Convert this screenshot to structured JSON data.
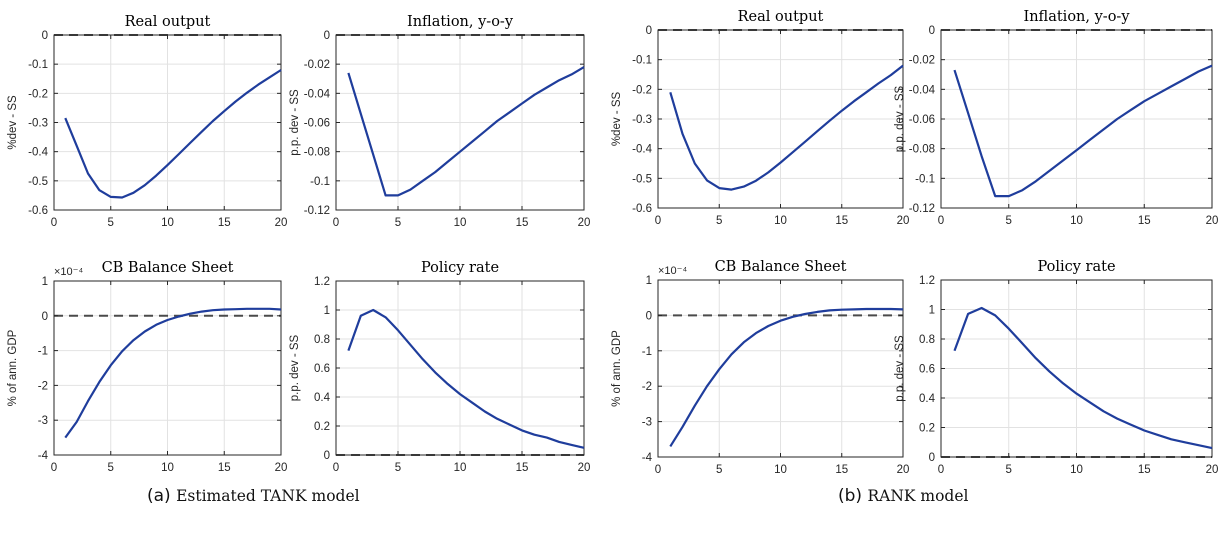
{
  "colors": {
    "line": "#1f3d9c",
    "zero": "#4a4a4a",
    "grid": "#e2e2e2",
    "axis": "#262626"
  },
  "panels": [
    {
      "caption": {
        "label": "(a)",
        "text": "Estimated TANK model"
      },
      "charts": [
        {
          "id": "tank-output",
          "type": "line",
          "title": "Real output",
          "xlabel": "",
          "ylabel": "%dev - SS",
          "xlim": [
            0,
            20
          ],
          "ylim": [
            -0.6,
            0
          ],
          "xticks": [
            "0",
            "5",
            "10",
            "15",
            "20"
          ],
          "xtick_values": [
            0,
            5,
            10,
            15,
            20
          ],
          "yticks": [
            "0",
            "-0.1",
            "-0.2",
            "-0.3",
            "-0.4",
            "-0.5",
            "-0.6"
          ],
          "ytick_values": [
            0,
            -0.1,
            -0.2,
            -0.3,
            -0.4,
            -0.5,
            -0.6
          ],
          "grid": true,
          "zero_line": 0,
          "x": [
            1,
            2,
            3,
            4,
            5,
            6,
            7,
            8,
            9,
            10,
            11,
            12,
            13,
            14,
            15,
            16,
            17,
            18,
            19,
            20
          ],
          "y": [
            -0.285,
            -0.38,
            -0.475,
            -0.532,
            -0.555,
            -0.557,
            -0.541,
            -0.515,
            -0.482,
            -0.446,
            -0.408,
            -0.37,
            -0.332,
            -0.295,
            -0.261,
            -0.228,
            -0.198,
            -0.17,
            -0.145,
            -0.12
          ]
        },
        {
          "id": "tank-inflation",
          "type": "line",
          "title": "Inflation, y-o-y",
          "xlabel": "",
          "ylabel": "p.p. dev - SS",
          "xlim": [
            0,
            20
          ],
          "ylim": [
            -0.12,
            0
          ],
          "xticks": [
            "0",
            "5",
            "10",
            "15",
            "20"
          ],
          "xtick_values": [
            0,
            5,
            10,
            15,
            20
          ],
          "yticks": [
            "0",
            "-0.02",
            "-0.04",
            "-0.06",
            "-0.08",
            "-0.1",
            "-0.12"
          ],
          "ytick_values": [
            0,
            -0.02,
            -0.04,
            -0.06,
            -0.08,
            -0.1,
            -0.12
          ],
          "grid": true,
          "zero_line": 0,
          "x": [
            1,
            2,
            3,
            4,
            5,
            6,
            7,
            8,
            9,
            10,
            11,
            12,
            13,
            14,
            15,
            16,
            17,
            18,
            19,
            20
          ],
          "y": [
            -0.026,
            -0.054,
            -0.082,
            -0.11,
            -0.11,
            -0.106,
            -0.1,
            -0.094,
            -0.087,
            -0.08,
            -0.073,
            -0.066,
            -0.059,
            -0.053,
            -0.047,
            -0.041,
            -0.036,
            -0.031,
            -0.027,
            -0.022
          ]
        },
        {
          "id": "tank-balance",
          "type": "line",
          "title": "CB Balance Sheet",
          "xlabel": "",
          "ylabel": "% of ann. GDP",
          "xlim": [
            0,
            20
          ],
          "ylim": [
            -4,
            1
          ],
          "exponent": "×10⁻⁴",
          "xticks": [
            "0",
            "5",
            "10",
            "15",
            "20"
          ],
          "xtick_values": [
            0,
            5,
            10,
            15,
            20
          ],
          "yticks": [
            "1",
            "0",
            "-1",
            "-2",
            "-3",
            "-4"
          ],
          "ytick_values": [
            1,
            0,
            -1,
            -2,
            -3,
            -4
          ],
          "grid": true,
          "zero_line": 0,
          "x": [
            1,
            2,
            3,
            4,
            5,
            6,
            7,
            8,
            9,
            10,
            11,
            12,
            13,
            14,
            15,
            16,
            17,
            18,
            19,
            20
          ],
          "y": [
            -3.5,
            -3.05,
            -2.45,
            -1.9,
            -1.42,
            -1.02,
            -0.7,
            -0.45,
            -0.26,
            -0.12,
            -0.02,
            0.06,
            0.12,
            0.16,
            0.18,
            0.19,
            0.2,
            0.2,
            0.2,
            0.18
          ]
        },
        {
          "id": "tank-policy",
          "type": "line",
          "title": "Policy rate",
          "xlabel": "",
          "ylabel": "p.p. dev - SS",
          "xlim": [
            0,
            20
          ],
          "ylim": [
            0,
            1.2
          ],
          "xticks": [
            "0",
            "5",
            "10",
            "15",
            "20"
          ],
          "xtick_values": [
            0,
            5,
            10,
            15,
            20
          ],
          "yticks": [
            "1.2",
            "1",
            "0.8",
            "0.6",
            "0.4",
            "0.2",
            "0"
          ],
          "ytick_values": [
            1.2,
            1,
            0.8,
            0.6,
            0.4,
            0.2,
            0
          ],
          "grid": true,
          "zero_line": 0,
          "x": [
            1,
            2,
            3,
            4,
            5,
            6,
            7,
            8,
            9,
            10,
            11,
            12,
            13,
            14,
            15,
            16,
            17,
            18,
            19,
            20
          ],
          "y": [
            0.72,
            0.96,
            1.0,
            0.95,
            0.86,
            0.76,
            0.66,
            0.57,
            0.49,
            0.42,
            0.36,
            0.3,
            0.25,
            0.21,
            0.17,
            0.14,
            0.12,
            0.09,
            0.07,
            0.05
          ]
        }
      ]
    },
    {
      "caption": {
        "label": "(b)",
        "text": "RANK model"
      },
      "charts": [
        {
          "id": "rank-output",
          "type": "line",
          "title": "Real output",
          "xlabel": "",
          "ylabel": "%dev - SS",
          "xlim": [
            0,
            20
          ],
          "ylim": [
            -0.6,
            0
          ],
          "xticks": [
            "0",
            "5",
            "10",
            "15",
            "20"
          ],
          "xtick_values": [
            0,
            5,
            10,
            15,
            20
          ],
          "yticks": [
            "0",
            "-0.1",
            "-0.2",
            "-0.3",
            "-0.4",
            "-0.5",
            "-0.6"
          ],
          "ytick_values": [
            0,
            -0.1,
            -0.2,
            -0.3,
            -0.4,
            -0.5,
            -0.6
          ],
          "grid": true,
          "zero_line": 0,
          "x": [
            1,
            2,
            3,
            4,
            5,
            6,
            7,
            8,
            9,
            10,
            11,
            12,
            13,
            14,
            15,
            16,
            17,
            18,
            19,
            20
          ],
          "y": [
            -0.21,
            -0.35,
            -0.45,
            -0.507,
            -0.533,
            -0.538,
            -0.528,
            -0.508,
            -0.48,
            -0.447,
            -0.412,
            -0.377,
            -0.341,
            -0.306,
            -0.272,
            -0.24,
            -0.21,
            -0.18,
            -0.152,
            -0.12
          ]
        },
        {
          "id": "rank-inflation",
          "type": "line",
          "title": "Inflation, y-o-y",
          "xlabel": "",
          "ylabel": "p.p. dev - SS",
          "xlim": [
            0,
            20
          ],
          "ylim": [
            -0.12,
            0
          ],
          "xticks": [
            "0",
            "5",
            "10",
            "15",
            "20"
          ],
          "xtick_values": [
            0,
            5,
            10,
            15,
            20
          ],
          "yticks": [
            "0",
            "-0.02",
            "-0.04",
            "-0.06",
            "-0.08",
            "-0.1",
            "-0.12"
          ],
          "ytick_values": [
            0,
            -0.02,
            -0.04,
            -0.06,
            -0.08,
            -0.1,
            -0.12
          ],
          "grid": true,
          "zero_line": 0,
          "x": [
            1,
            2,
            3,
            4,
            5,
            6,
            7,
            8,
            9,
            10,
            11,
            12,
            13,
            14,
            15,
            16,
            17,
            18,
            19,
            20
          ],
          "y": [
            -0.027,
            -0.056,
            -0.085,
            -0.112,
            -0.112,
            -0.108,
            -0.102,
            -0.095,
            -0.088,
            -0.081,
            -0.074,
            -0.067,
            -0.06,
            -0.054,
            -0.048,
            -0.043,
            -0.038,
            -0.033,
            -0.028,
            -0.024
          ]
        },
        {
          "id": "rank-balance",
          "type": "line",
          "title": "CB Balance Sheet",
          "xlabel": "",
          "ylabel": "% of ann. GDP",
          "xlim": [
            0,
            20
          ],
          "ylim": [
            -4,
            1
          ],
          "exponent": "×10⁻⁴",
          "xticks": [
            "0",
            "5",
            "10",
            "15",
            "20"
          ],
          "xtick_values": [
            0,
            5,
            10,
            15,
            20
          ],
          "yticks": [
            "1",
            "0",
            "-1",
            "-2",
            "-3",
            "-4"
          ],
          "ytick_values": [
            1,
            0,
            -1,
            -2,
            -3,
            -4
          ],
          "grid": true,
          "zero_line": 0,
          "x": [
            1,
            2,
            3,
            4,
            5,
            6,
            7,
            8,
            9,
            10,
            11,
            12,
            13,
            14,
            15,
            16,
            17,
            18,
            19,
            20
          ],
          "y": [
            -3.7,
            -3.15,
            -2.55,
            -2.0,
            -1.52,
            -1.1,
            -0.76,
            -0.5,
            -0.3,
            -0.15,
            -0.04,
            0.04,
            0.1,
            0.14,
            0.16,
            0.17,
            0.18,
            0.18,
            0.18,
            0.17
          ]
        },
        {
          "id": "rank-policy",
          "type": "line",
          "title": "Policy rate",
          "xlabel": "",
          "ylabel": "p.p. dev - SS",
          "xlim": [
            0,
            20
          ],
          "ylim": [
            0,
            1.2
          ],
          "xticks": [
            "0",
            "5",
            "10",
            "15",
            "20"
          ],
          "xtick_values": [
            0,
            5,
            10,
            15,
            20
          ],
          "yticks": [
            "1.2",
            "1",
            "0.8",
            "0.6",
            "0.4",
            "0.2",
            "0"
          ],
          "ytick_values": [
            1.2,
            1,
            0.8,
            0.6,
            0.4,
            0.2,
            0
          ],
          "grid": true,
          "zero_line": 0,
          "x": [
            1,
            2,
            3,
            4,
            5,
            6,
            7,
            8,
            9,
            10,
            11,
            12,
            13,
            14,
            15,
            16,
            17,
            18,
            19,
            20
          ],
          "y": [
            0.72,
            0.97,
            1.01,
            0.96,
            0.87,
            0.77,
            0.67,
            0.58,
            0.5,
            0.43,
            0.37,
            0.31,
            0.26,
            0.22,
            0.18,
            0.15,
            0.12,
            0.1,
            0.08,
            0.06
          ]
        }
      ]
    }
  ],
  "chart_data": [
    {
      "type": "line",
      "title": "Real output",
      "ylabel": "%dev - SS",
      "xlim": [
        0,
        20
      ],
      "ylim": [
        -0.6,
        0
      ],
      "x": [
        1,
        2,
        3,
        4,
        5,
        6,
        7,
        8,
        9,
        10,
        11,
        12,
        13,
        14,
        15,
        16,
        17,
        18,
        19,
        20
      ],
      "y": [
        -0.285,
        -0.38,
        -0.475,
        -0.532,
        -0.555,
        -0.557,
        -0.541,
        -0.515,
        -0.482,
        -0.446,
        -0.408,
        -0.37,
        -0.332,
        -0.295,
        -0.261,
        -0.228,
        -0.198,
        -0.17,
        -0.145,
        -0.12
      ]
    },
    {
      "type": "line",
      "title": "Inflation, y-o-y",
      "ylabel": "p.p. dev - SS",
      "xlim": [
        0,
        20
      ],
      "ylim": [
        -0.12,
        0
      ],
      "x": [
        1,
        2,
        3,
        4,
        5,
        6,
        7,
        8,
        9,
        10,
        11,
        12,
        13,
        14,
        15,
        16,
        17,
        18,
        19,
        20
      ],
      "y": [
        -0.026,
        -0.054,
        -0.082,
        -0.11,
        -0.11,
        -0.106,
        -0.1,
        -0.094,
        -0.087,
        -0.08,
        -0.073,
        -0.066,
        -0.059,
        -0.053,
        -0.047,
        -0.041,
        -0.036,
        -0.031,
        -0.027,
        -0.022
      ]
    },
    {
      "type": "line",
      "title": "CB Balance Sheet",
      "ylabel": "% of ann. GDP",
      "xlim": [
        0,
        20
      ],
      "ylim": [
        -4,
        1
      ],
      "scale": "×10^-4",
      "x": [
        1,
        2,
        3,
        4,
        5,
        6,
        7,
        8,
        9,
        10,
        11,
        12,
        13,
        14,
        15,
        16,
        17,
        18,
        19,
        20
      ],
      "y": [
        -3.5,
        -3.05,
        -2.45,
        -1.9,
        -1.42,
        -1.02,
        -0.7,
        -0.45,
        -0.26,
        -0.12,
        -0.02,
        0.06,
        0.12,
        0.16,
        0.18,
        0.19,
        0.2,
        0.2,
        0.2,
        0.18
      ]
    },
    {
      "type": "line",
      "title": "Policy rate",
      "ylabel": "p.p. dev - SS",
      "xlim": [
        0,
        20
      ],
      "ylim": [
        0,
        1.2
      ],
      "x": [
        1,
        2,
        3,
        4,
        5,
        6,
        7,
        8,
        9,
        10,
        11,
        12,
        13,
        14,
        15,
        16,
        17,
        18,
        19,
        20
      ],
      "y": [
        0.72,
        0.96,
        1.0,
        0.95,
        0.86,
        0.76,
        0.66,
        0.57,
        0.49,
        0.42,
        0.36,
        0.3,
        0.25,
        0.21,
        0.17,
        0.14,
        0.12,
        0.09,
        0.07,
        0.05
      ]
    },
    {
      "type": "line",
      "title": "Real output",
      "ylabel": "%dev - SS",
      "xlim": [
        0,
        20
      ],
      "ylim": [
        -0.6,
        0
      ],
      "x": [
        1,
        2,
        3,
        4,
        5,
        6,
        7,
        8,
        9,
        10,
        11,
        12,
        13,
        14,
        15,
        16,
        17,
        18,
        19,
        20
      ],
      "y": [
        -0.21,
        -0.35,
        -0.45,
        -0.507,
        -0.533,
        -0.538,
        -0.528,
        -0.508,
        -0.48,
        -0.447,
        -0.412,
        -0.377,
        -0.341,
        -0.306,
        -0.272,
        -0.24,
        -0.21,
        -0.18,
        -0.152,
        -0.12
      ]
    },
    {
      "type": "line",
      "title": "Inflation, y-o-y",
      "ylabel": "p.p. dev - SS",
      "xlim": [
        0,
        20
      ],
      "ylim": [
        -0.12,
        0
      ],
      "x": [
        1,
        2,
        3,
        4,
        5,
        6,
        7,
        8,
        9,
        10,
        11,
        12,
        13,
        14,
        15,
        16,
        17,
        18,
        19,
        20
      ],
      "y": [
        -0.027,
        -0.056,
        -0.085,
        -0.112,
        -0.112,
        -0.108,
        -0.102,
        -0.095,
        -0.088,
        -0.081,
        -0.074,
        -0.067,
        -0.06,
        -0.054,
        -0.048,
        -0.043,
        -0.038,
        -0.033,
        -0.028,
        -0.024
      ]
    },
    {
      "type": "line",
      "title": "CB Balance Sheet",
      "ylabel": "% of ann. GDP",
      "xlim": [
        0,
        20
      ],
      "ylim": [
        -4,
        1
      ],
      "scale": "×10^-4",
      "x": [
        1,
        2,
        3,
        4,
        5,
        6,
        7,
        8,
        9,
        10,
        11,
        12,
        13,
        14,
        15,
        16,
        17,
        18,
        19,
        20
      ],
      "y": [
        -3.7,
        -3.15,
        -2.55,
        -2.0,
        -1.52,
        -1.1,
        -0.76,
        -0.5,
        -0.3,
        -0.15,
        -0.04,
        0.04,
        0.1,
        0.14,
        0.16,
        0.17,
        0.18,
        0.18,
        0.18,
        0.17
      ]
    },
    {
      "type": "line",
      "title": "Policy rate",
      "ylabel": "p.p. dev - SS",
      "xlim": [
        0,
        20
      ],
      "ylim": [
        0,
        1.2
      ],
      "x": [
        1,
        2,
        3,
        4,
        5,
        6,
        7,
        8,
        9,
        10,
        11,
        12,
        13,
        14,
        15,
        16,
        17,
        18,
        19,
        20
      ],
      "y": [
        0.72,
        0.97,
        1.01,
        0.96,
        0.87,
        0.77,
        0.67,
        0.58,
        0.5,
        0.43,
        0.37,
        0.31,
        0.26,
        0.22,
        0.18,
        0.15,
        0.12,
        0.1,
        0.08,
        0.06
      ]
    }
  ]
}
